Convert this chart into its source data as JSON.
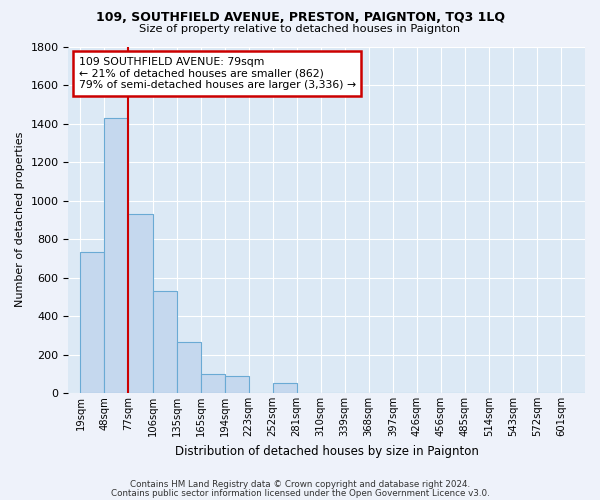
{
  "title1": "109, SOUTHFIELD AVENUE, PRESTON, PAIGNTON, TQ3 1LQ",
  "title2": "Size of property relative to detached houses in Paignton",
  "xlabel": "Distribution of detached houses by size in Paignton",
  "ylabel": "Number of detached properties",
  "categories": [
    "19sqm",
    "48sqm",
    "77sqm",
    "106sqm",
    "135sqm",
    "165sqm",
    "194sqm",
    "223sqm",
    "252sqm",
    "281sqm",
    "310sqm",
    "339sqm",
    "368sqm",
    "397sqm",
    "426sqm",
    "456sqm",
    "485sqm",
    "514sqm",
    "543sqm",
    "572sqm",
    "601sqm"
  ],
  "values": [
    730,
    1430,
    930,
    530,
    265,
    100,
    90,
    0,
    50,
    0,
    0,
    0,
    0,
    0,
    0,
    0,
    0,
    0,
    0,
    0,
    0
  ],
  "bar_color": "#c5d8ee",
  "bar_edge_color": "#6aaad4",
  "vline_color": "#cc0000",
  "annotation_text": "109 SOUTHFIELD AVENUE: 79sqm\n← 21% of detached houses are smaller (862)\n79% of semi-detached houses are larger (3,336) →",
  "annotation_box_color": "#cc0000",
  "ylim": [
    0,
    1800
  ],
  "yticks": [
    0,
    200,
    400,
    600,
    800,
    1000,
    1200,
    1400,
    1600,
    1800
  ],
  "footer1": "Contains HM Land Registry data © Crown copyright and database right 2024.",
  "footer2": "Contains public sector information licensed under the Open Government Licence v3.0.",
  "bg_color": "#eef2fa",
  "plot_bg_color": "#dce9f5",
  "vline_index": 2
}
